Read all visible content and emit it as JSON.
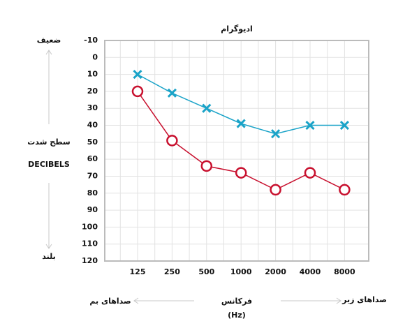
{
  "chart_data": {
    "type": "line",
    "title": "ادیوگرام",
    "y_label_top": "ضعیف",
    "y_label": "سطح شدت",
    "y_label_unit": "DECIBELS",
    "y_label_bottom": "بلند",
    "x_label_left": "صداهای بم",
    "x_label": "فرکانس",
    "x_label_unit": "(Hz)",
    "x_label_right": "صداهای زیر",
    "categories": [
      "125",
      "250",
      "500",
      "1000",
      "2000",
      "4000",
      "8000"
    ],
    "ylim": [
      -10,
      120
    ],
    "yticks": [
      -10,
      0,
      10,
      20,
      30,
      40,
      50,
      60,
      70,
      80,
      90,
      100,
      110,
      120
    ],
    "y_inverted": true,
    "grid": true,
    "series": [
      {
        "color": "#1aa3c8",
        "marker": "x",
        "values": [
          10,
          21,
          30,
          39,
          45,
          40,
          40
        ]
      },
      {
        "color": "#c8102e",
        "marker": "o",
        "values": [
          20,
          49,
          64,
          68,
          78,
          68,
          78
        ]
      }
    ]
  }
}
